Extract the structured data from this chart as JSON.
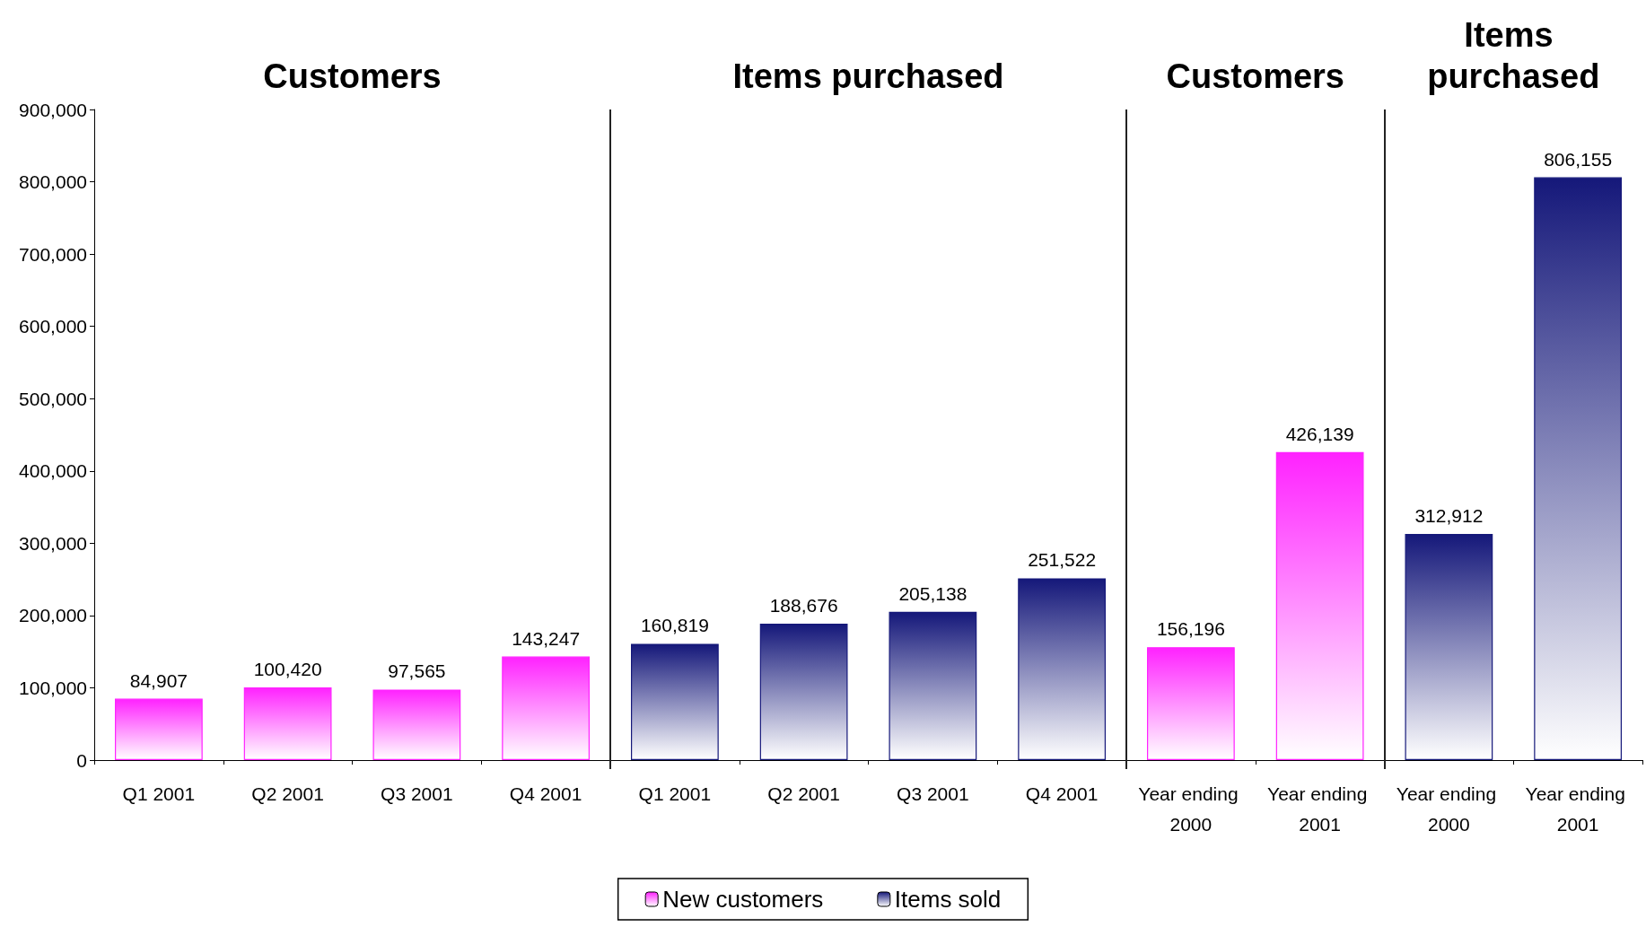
{
  "chart_data": {
    "type": "bar",
    "stacked": true,
    "categories": [
      "Q1 2001",
      "Q2 2001",
      "Q3 2001",
      "Q4 2001",
      "Q1 2001",
      "Q2 2001",
      "Q3 2001",
      "Q4 2001",
      "Year ending 2000",
      "Year ending 2001",
      "Year ending 2000",
      "Year ending 2001"
    ],
    "series": [
      {
        "name": "New customers",
        "color": "#ff22ff",
        "values": [
          84907,
          100420,
          97565,
          143247,
          null,
          null,
          null,
          null,
          156196,
          426139,
          null,
          null
        ],
        "value_labels": [
          "84,907",
          "100,420",
          "97,565",
          "143,247",
          null,
          null,
          null,
          null,
          "156,196",
          "426,139",
          null,
          null
        ]
      },
      {
        "name": "Items sold",
        "color": "#15187a",
        "values": [
          null,
          null,
          null,
          null,
          160819,
          188676,
          205138,
          251522,
          null,
          null,
          312912,
          806155
        ],
        "value_labels": [
          null,
          null,
          null,
          null,
          "160,819",
          "188,676",
          "205,138",
          "251,522",
          null,
          null,
          "312,912",
          "806,155"
        ]
      }
    ],
    "annotations": [
      "Customers",
      "Items purchased",
      "Customers",
      "Items purchased"
    ],
    "ylim": [
      0,
      900000
    ],
    "yticks": [
      {
        "value": 0,
        "label": "0"
      },
      {
        "value": 100000,
        "label": "100,000"
      },
      {
        "value": 200000,
        "label": "200,000"
      },
      {
        "value": 300000,
        "label": "300,000"
      },
      {
        "value": 400000,
        "label": "400,000"
      },
      {
        "value": 500000,
        "label": "500,000"
      },
      {
        "value": 600000,
        "label": "600,000"
      },
      {
        "value": 700000,
        "label": "700,000"
      },
      {
        "value": 800000,
        "label": "800,000"
      },
      {
        "value": 900000,
        "label": "900,000"
      }
    ],
    "grid": false,
    "legend": "bottom"
  }
}
